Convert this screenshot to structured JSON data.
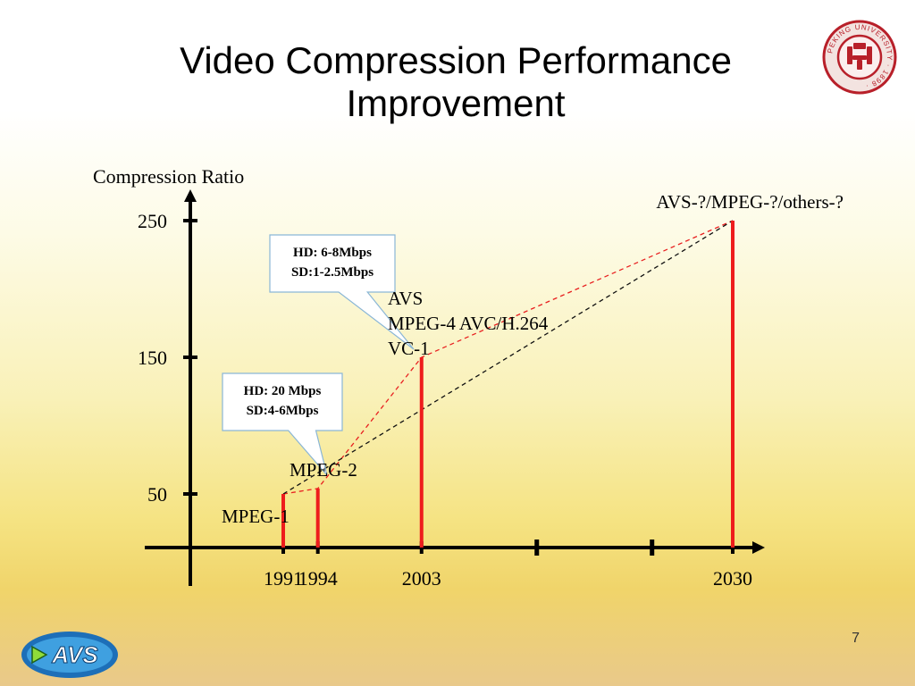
{
  "slide": {
    "title_lines": [
      "Video Compression Performance",
      "Improvement"
    ],
    "page_number": "7",
    "logo_text": "AVS",
    "seal_text": "PEKING UNIVERSITY · 1898 ·"
  },
  "colors": {
    "bar": "#ee1c1c",
    "red_dash": "#e82020",
    "black_dash": "#111111",
    "callout_border": "#8ab6d6",
    "axis": "#000000"
  },
  "chart_data": {
    "type": "bar",
    "ylabel": "Compression Ratio",
    "y_ticks": [
      50,
      150,
      250
    ],
    "ylim": [
      0,
      290
    ],
    "x_ticks": [
      1991,
      1994,
      2003,
      2030
    ],
    "xlim": [
      1983,
      2033
    ],
    "unlabeled_x_ticks": [
      2013,
      2023
    ],
    "points": [
      {
        "year": 1991,
        "value": 50,
        "label": "MPEG-1"
      },
      {
        "year": 1994,
        "value": 54,
        "label": "MPEG-2"
      },
      {
        "year": 2003,
        "value": 150,
        "label": "AVS\nMPEG-4 AVC/H.264\nVC-1"
      },
      {
        "year": 2030,
        "value": 250,
        "label": "AVS-?/MPEG-?/others-?"
      }
    ],
    "trend_lines": [
      {
        "style": "red-dashed",
        "through": [
          1991,
          1994,
          2003,
          2030
        ]
      },
      {
        "style": "black-dashed",
        "through": [
          1991,
          2030
        ]
      }
    ],
    "callouts": [
      {
        "lines": [
          "HD: 20 Mbps",
          "SD:4-6Mbps"
        ],
        "points_to": 1994
      },
      {
        "lines": [
          "HD: 6-8Mbps",
          "SD:1-2.5Mbps"
        ],
        "points_to": 2003
      }
    ],
    "grid": false,
    "legend": "none"
  }
}
